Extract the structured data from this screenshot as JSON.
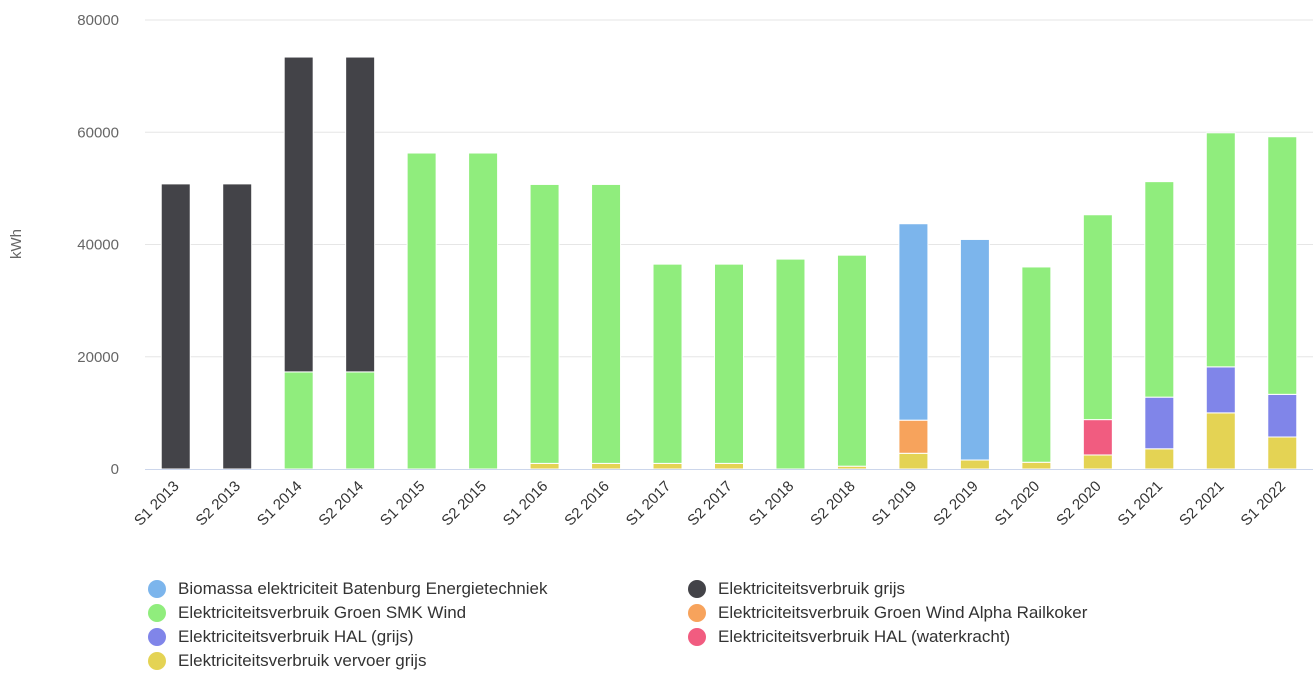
{
  "chart_data": {
    "type": "bar",
    "stacked": true,
    "ylabel": "kWh",
    "ylim": [
      0,
      80000
    ],
    "yticks": [
      "0",
      "20000",
      "40000",
      "60000",
      "80000"
    ],
    "grid": true,
    "legend_position": "bottom",
    "categories": [
      "S1 2013",
      "S2 2013",
      "S1 2014",
      "S2 2014",
      "S1 2015",
      "S2 2015",
      "S1 2016",
      "S2 2016",
      "S1 2017",
      "S2 2017",
      "S1 2018",
      "S2 2018",
      "S1 2019",
      "S2 2019",
      "S1 2020",
      "S2 2020",
      "S1 2021",
      "S2 2021",
      "S1 2022"
    ],
    "series": [
      {
        "name": "Elektriciteitsverbruik vervoer grijs",
        "color": "#e4d354",
        "values": [
          0,
          0,
          0,
          0,
          0,
          0,
          1000,
          1000,
          1000,
          1000,
          0,
          500,
          2800,
          1600,
          1200,
          2500,
          3600,
          10000,
          5700
        ]
      },
      {
        "name": "Elektriciteitsverbruik HAL (waterkracht)",
        "color": "#f15c80",
        "values": [
          0,
          0,
          0,
          0,
          0,
          0,
          0,
          0,
          0,
          0,
          0,
          0,
          0,
          0,
          0,
          6300,
          0,
          0,
          0
        ]
      },
      {
        "name": "Elektriciteitsverbruik HAL (grijs)",
        "color": "#8085e9",
        "values": [
          0,
          0,
          0,
          0,
          0,
          0,
          0,
          0,
          0,
          0,
          0,
          0,
          0,
          0,
          0,
          0,
          9200,
          8200,
          7600
        ]
      },
      {
        "name": "Elektriciteitsverbruik Groen Wind Alpha Railkoker",
        "color": "#f7a35c",
        "values": [
          0,
          0,
          0,
          0,
          0,
          0,
          0,
          0,
          0,
          0,
          0,
          0,
          5900,
          0,
          0,
          0,
          0,
          0,
          0
        ]
      },
      {
        "name": "Elektriciteitsverbruik Groen SMK Wind",
        "color": "#90ed7d",
        "values": [
          0,
          0,
          17300,
          17300,
          56300,
          56300,
          49700,
          49700,
          35500,
          35500,
          37400,
          37600,
          0,
          0,
          34800,
          36500,
          38400,
          41700,
          45900
        ]
      },
      {
        "name": "Elektriciteitsverbruik grijs",
        "color": "#434348",
        "values": [
          50800,
          50800,
          56100,
          56100,
          0,
          0,
          0,
          0,
          0,
          0,
          0,
          0,
          0,
          0,
          0,
          0,
          0,
          0,
          0
        ]
      },
      {
        "name": "Biomassa elektriciteit Batenburg Energietechniek",
        "color": "#7cb5ec",
        "values": [
          0,
          0,
          0,
          0,
          0,
          0,
          0,
          0,
          0,
          0,
          0,
          0,
          35000,
          39300,
          0,
          0,
          0,
          0,
          0
        ]
      }
    ],
    "legend": [
      {
        "name": "Biomassa elektriciteit Batenburg Energietechniek",
        "color": "#7cb5ec"
      },
      {
        "name": "Elektriciteitsverbruik grijs",
        "color": "#434348"
      },
      {
        "name": "Elektriciteitsverbruik Groen SMK Wind",
        "color": "#90ed7d"
      },
      {
        "name": "Elektriciteitsverbruik Groen Wind Alpha Railkoker",
        "color": "#f7a35c"
      },
      {
        "name": "Elektriciteitsverbruik HAL (grijs)",
        "color": "#8085e9"
      },
      {
        "name": "Elektriciteitsverbruik HAL (waterkracht)",
        "color": "#f15c80"
      },
      {
        "name": "Elektriciteitsverbruik vervoer grijs",
        "color": "#e4d354"
      }
    ]
  }
}
